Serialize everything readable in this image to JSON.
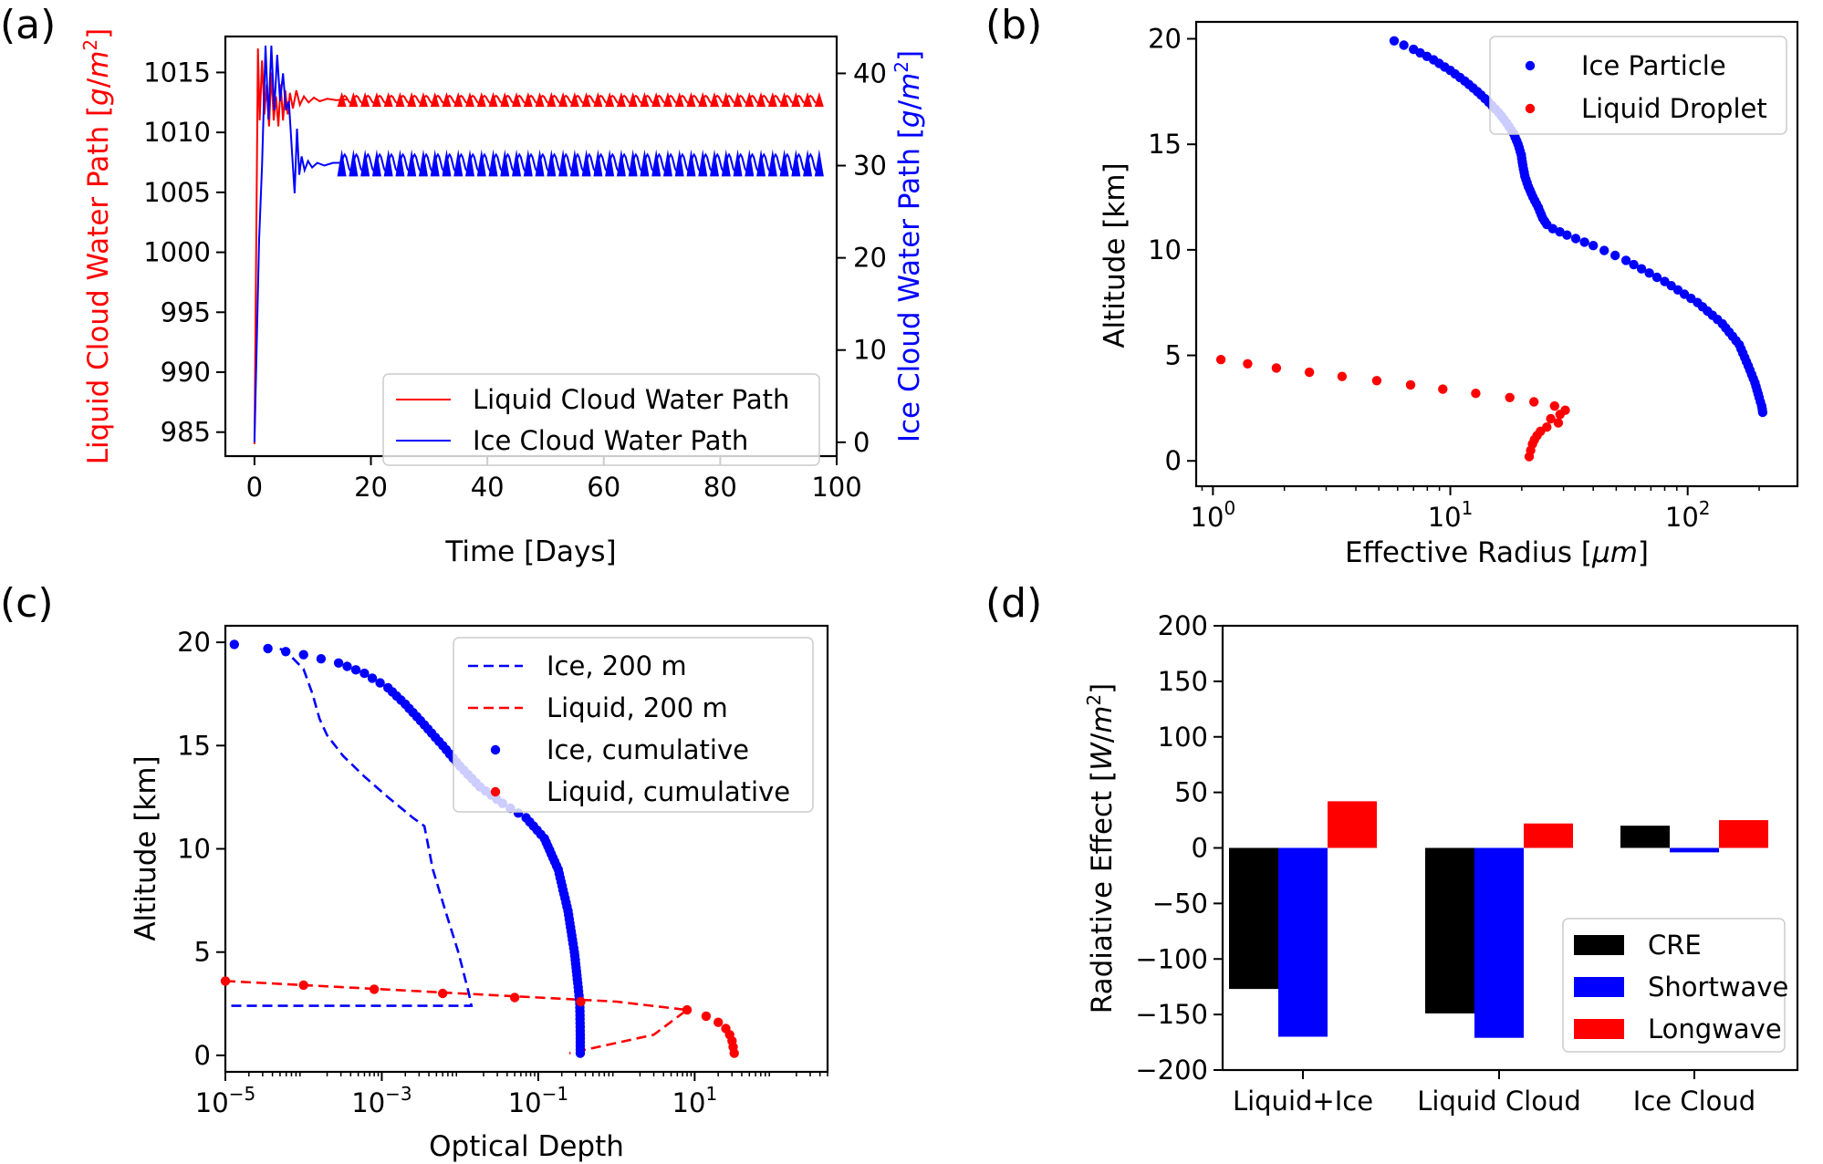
{
  "panels": [
    {
      "label": "(a)"
    },
    {
      "label": "(b)"
    },
    {
      "label": "(c)"
    },
    {
      "label": "(d)"
    }
  ],
  "chart_data": [
    {
      "type": "line",
      "panel": "(a)",
      "xlabel": "Time [Days]",
      "ylabel_left": "Liquid Cloud Water Path [g/m²]",
      "ylabel_right": "Ice Cloud Water Path [g/m²]",
      "xlim": [
        -5,
        100
      ],
      "ylim_left": [
        983,
        1018
      ],
      "ylim_right": [
        -1.5,
        44
      ],
      "xticks": [
        0,
        20,
        40,
        60,
        80,
        100
      ],
      "xtick_labels": [
        "0",
        "20",
        "40",
        "60",
        "80",
        "100"
      ],
      "yticks_left": [
        985,
        990,
        995,
        1000,
        1005,
        1010,
        1015
      ],
      "ytick_labels_left": [
        "985",
        "990",
        "995",
        "1000",
        "1005",
        "1010",
        "1015"
      ],
      "yticks_right": [
        0,
        10,
        20,
        30,
        40
      ],
      "ytick_labels_right": [
        "0",
        "10",
        "20",
        "30",
        "40"
      ],
      "legend_position": "lower-right",
      "series": [
        {
          "name": "Liquid Cloud Water Path",
          "axis": "left",
          "color": "#ff0000",
          "x": [
            0,
            0.6,
            0.9,
            1.3,
            1.7,
            2.1,
            2.5,
            2.9,
            3.3,
            3.7,
            4.1,
            4.5,
            4.9,
            5.3,
            5.7,
            6.1,
            6.6,
            7.2,
            7.8,
            8.5,
            9.3,
            10.2,
            11.2,
            12.5,
            14,
            16,
            97
          ],
          "y": [
            984,
            1017,
            1011,
            1016,
            1011.5,
            1014,
            1010.5,
            1015,
            1011,
            1013,
            1010.5,
            1014,
            1011,
            1013.5,
            1011.5,
            1013.3,
            1012,
            1013.5,
            1012.3,
            1013,
            1012.5,
            1012.9,
            1012.6,
            1012.8,
            1012.7,
            1012.75,
            1012.75
          ],
          "oscillation_from": 15,
          "oscillation_period_days": 2,
          "oscillation_amplitude": 0.3
        },
        {
          "name": "Ice Cloud Water Path",
          "axis": "right",
          "color": "#0000ff",
          "x": [
            0,
            0.8,
            1.3,
            1.9,
            2.4,
            2.9,
            3.4,
            3.9,
            4.4,
            4.9,
            5.4,
            5.9,
            6.4,
            6.9,
            7.3,
            7.7,
            8.1,
            8.6,
            9.2,
            9.9,
            10.8,
            12,
            13.5,
            15,
            97
          ],
          "y": [
            0,
            22,
            30,
            43,
            35,
            43,
            36,
            42,
            37,
            40,
            36,
            37,
            32,
            27,
            34,
            29,
            31,
            29.5,
            30.5,
            29.8,
            30.3,
            30.0,
            30.3,
            30.3,
            30.3
          ],
          "oscillation_from": 15,
          "oscillation_period_days": 2,
          "oscillation_amplitude": 0.9
        }
      ]
    },
    {
      "type": "scatter",
      "panel": "(b)",
      "xlabel": "Effective Radius [μm]",
      "ylabel": "Altitude [km]",
      "xscale": "log",
      "xlim": [
        0.85,
        290
      ],
      "ylim": [
        -1.2,
        20.8
      ],
      "xticks": [
        1,
        10,
        100
      ],
      "xtick_labels": [
        "10⁰",
        "10¹",
        "10²"
      ],
      "yticks": [
        0,
        5,
        10,
        15,
        20
      ],
      "ytick_labels": [
        "0",
        "5",
        "10",
        "15",
        "20"
      ],
      "legend_position": "top-right",
      "series": [
        {
          "name": "Ice Particle",
          "color": "#0000ff",
          "x": [
            5.8,
            7.0,
            8.5,
            10.0,
            11.5,
            13.0,
            14.5,
            16.0,
            17.3,
            18.5,
            19.3,
            19.9,
            20.2,
            20.6,
            21.3,
            22.3,
            23.5,
            24.5,
            25.5,
            27.0,
            31.0,
            40.0,
            55.0,
            80.0,
            110.0,
            140.0,
            165.0,
            180.0,
            192.0,
            200.0,
            205.0,
            207.0
          ],
          "y": [
            19.9,
            19.5,
            19.0,
            18.5,
            18.0,
            17.5,
            17.0,
            16.5,
            16.0,
            15.5,
            15.0,
            14.5,
            14.0,
            13.5,
            13.0,
            12.5,
            12.0,
            11.5,
            11.2,
            11.0,
            10.7,
            10.2,
            9.5,
            8.5,
            7.5,
            6.5,
            5.5,
            4.5,
            3.7,
            3.0,
            2.6,
            2.3
          ],
          "marker_step_km": 0.2
        },
        {
          "name": "Liquid Droplet",
          "color": "#ff0000",
          "x": [
            1.08,
            1.4,
            1.85,
            2.55,
            3.5,
            4.9,
            6.8,
            9.3,
            12.8,
            17.8,
            22.5,
            27.5,
            30.5,
            29.0,
            26.5,
            28.5,
            25.5,
            24.0,
            23.2,
            22.6,
            22.2,
            21.8,
            21.5
          ],
          "y": [
            4.8,
            4.6,
            4.4,
            4.2,
            4.0,
            3.8,
            3.6,
            3.4,
            3.2,
            3.0,
            2.8,
            2.6,
            2.4,
            2.2,
            2.0,
            1.8,
            1.6,
            1.4,
            1.2,
            1.0,
            0.8,
            0.5,
            0.2
          ]
        }
      ]
    },
    {
      "type": "scatter",
      "panel": "(c)",
      "xlabel": "Optical Depth",
      "ylabel": "Altitude [km]",
      "xscale": "log",
      "xlim": [
        1e-05,
        500
      ],
      "ylim": [
        -0.8,
        20.8
      ],
      "xticks": [
        1e-05,
        0.001,
        0.1,
        10
      ],
      "xtick_labels": [
        "10⁻⁵",
        "10⁻³",
        "10⁻¹",
        "10¹"
      ],
      "yticks": [
        0,
        5,
        10,
        15,
        20
      ],
      "ytick_labels": [
        "0",
        "5",
        "10",
        "15",
        "20"
      ],
      "legend_position": "top-right",
      "series": [
        {
          "name": "Ice, 200 m",
          "style": "dashed",
          "color": "#0000ff",
          "x": [
            5e-05,
            7e-05,
            0.0001,
            0.00013,
            0.00016,
            0.0002,
            0.00032,
            0.0006,
            0.0012,
            0.0025,
            0.0035,
            0.0045,
            0.0065,
            0.0095,
            0.013,
            0.014,
            1e-05
          ],
          "y": [
            19.7,
            19.3,
            18.7,
            17.5,
            16.3,
            15.5,
            14.5,
            13.5,
            12.5,
            11.5,
            11.1,
            9.0,
            7.0,
            5.0,
            3.0,
            2.4,
            2.4
          ]
        },
        {
          "name": "Liquid, 200 m",
          "style": "dashed",
          "color": "#ff0000",
          "x": [
            1e-05,
            0.0001,
            0.001,
            0.01,
            0.1,
            1,
            8,
            3,
            0.25
          ],
          "y": [
            3.6,
            3.4,
            3.2,
            3.0,
            2.8,
            2.6,
            2.2,
            1.0,
            0.1
          ]
        },
        {
          "name": "Ice, cumulative",
          "style": "points",
          "color": "#0000ff",
          "x": [
            1.3e-05,
            3.5e-05,
            0.0001,
            0.00028,
            0.0006,
            0.0012,
            0.002,
            0.0035,
            0.006,
            0.01,
            0.018,
            0.035,
            0.07,
            0.12,
            0.18,
            0.24,
            0.29,
            0.32,
            0.34,
            0.345,
            0.345
          ],
          "y": [
            19.9,
            19.7,
            19.4,
            19.0,
            18.5,
            17.8,
            17.0,
            16.0,
            15.0,
            14.0,
            13.0,
            12.2,
            11.5,
            10.5,
            9.0,
            7.0,
            5.0,
            3.5,
            2.5,
            1.0,
            0.1
          ],
          "marker_step_km": 0.2
        },
        {
          "name": "Liquid, cumulative",
          "style": "points",
          "color": "#ff0000",
          "x": [
            1e-05,
            0.0001,
            0.0008,
            0.006,
            0.05,
            0.35,
            8,
            14,
            20,
            25,
            28,
            30,
            31,
            32
          ],
          "y": [
            3.6,
            3.4,
            3.2,
            3.0,
            2.8,
            2.6,
            2.2,
            1.9,
            1.6,
            1.3,
            1.0,
            0.7,
            0.4,
            0.1
          ]
        }
      ]
    },
    {
      "type": "bar",
      "panel": "(d)",
      "ylabel": "Radiative Effect [W/m²]",
      "xlabel": "",
      "ylim": [
        -200,
        200
      ],
      "yticks": [
        -200,
        -150,
        -100,
        -50,
        0,
        50,
        100,
        150,
        200
      ],
      "ytick_labels": [
        "−200",
        "−150",
        "−100",
        "−50",
        "0",
        "50",
        "100",
        "150",
        "200"
      ],
      "categories": [
        "Liquid+Ice",
        "Liquid Cloud",
        "Ice Cloud"
      ],
      "legend_position": "lower-right",
      "series": [
        {
          "name": "CRE",
          "color": "#000000",
          "values": [
            -127,
            -149,
            20
          ]
        },
        {
          "name": "Shortwave",
          "color": "#0000ff",
          "values": [
            -170,
            -171,
            -4
          ]
        },
        {
          "name": "Longwave",
          "color": "#ff0000",
          "values": [
            42,
            22,
            25
          ]
        }
      ]
    }
  ]
}
